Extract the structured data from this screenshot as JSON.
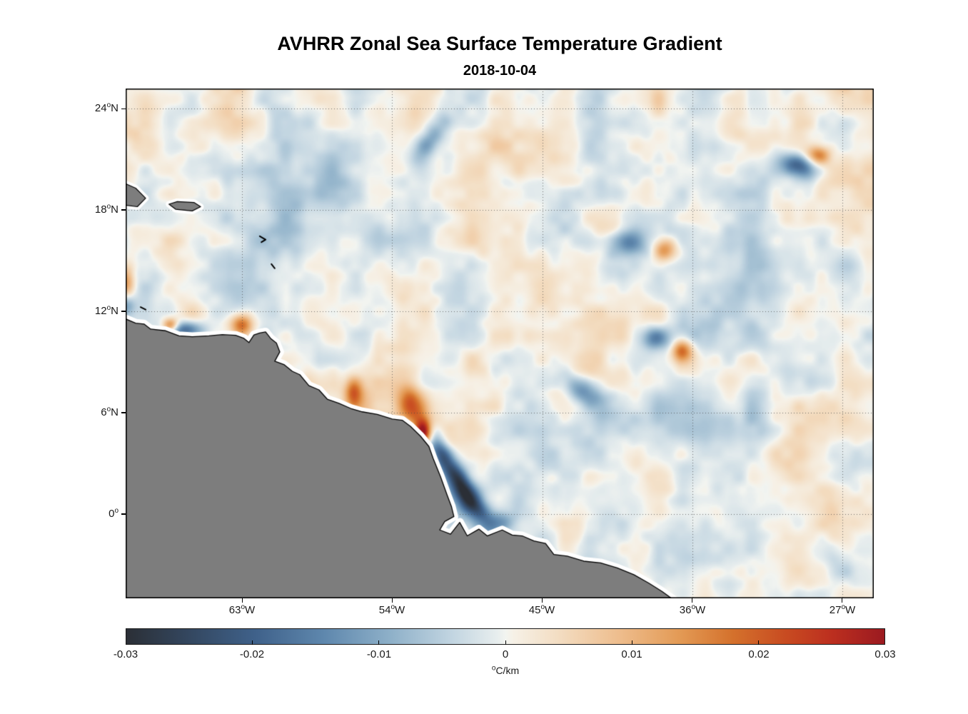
{
  "header": {
    "title": "AVHRR Zonal Sea Surface Temperature Gradient",
    "date": "2018-10-04"
  },
  "labels": {
    "degree": "o"
  },
  "axes": {
    "x_ticks": [
      {
        "v": "63",
        "s": "W",
        "lon": -63
      },
      {
        "v": "54",
        "s": "W",
        "lon": -54
      },
      {
        "v": "45",
        "s": "W",
        "lon": -45
      },
      {
        "v": "36",
        "s": "W",
        "lon": -36
      },
      {
        "v": "27",
        "s": "W",
        "lon": -27
      }
    ],
    "y_ticks": [
      {
        "v": "24",
        "s": "N",
        "lat": 24
      },
      {
        "v": "18",
        "s": "N",
        "lat": 18
      },
      {
        "v": "12",
        "s": "N",
        "lat": 12
      },
      {
        "v": "6",
        "s": "N",
        "lat": 6
      },
      {
        "v": "0",
        "s": "",
        "lat": 0
      }
    ]
  },
  "colorbar": {
    "ticks": [
      {
        "label": "-0.03",
        "value": -0.03
      },
      {
        "label": "-0.02",
        "value": -0.02
      },
      {
        "label": "-0.01",
        "value": -0.01
      },
      {
        "label": "0",
        "value": 0
      },
      {
        "label": "0.01",
        "value": 0.01
      },
      {
        "label": "0.02",
        "value": 0.02
      },
      {
        "label": "0.03",
        "value": 0.03
      }
    ],
    "unit": "C/km"
  },
  "chart_data": {
    "type": "heatmap",
    "title": "AVHRR Zonal Sea Surface Temperature Gradient",
    "date": "2018-10-04",
    "lon_range": [
      -70.0,
      -25.1
    ],
    "lat_range": [
      -5.0,
      25.2
    ],
    "grid_lons": [
      -63,
      -54,
      -45,
      -36,
      -27
    ],
    "grid_lats": [
      0,
      6,
      12,
      18,
      24
    ],
    "value_range": [
      -0.03,
      0.03
    ],
    "unit": "°C/km",
    "colormap_stops": [
      [
        0.0,
        "#2b2f36"
      ],
      [
        0.08,
        "#33465e"
      ],
      [
        0.17,
        "#3f618a"
      ],
      [
        0.26,
        "#5e87ad"
      ],
      [
        0.35,
        "#8fb1c9"
      ],
      [
        0.43,
        "#c2d5e1"
      ],
      [
        0.49,
        "#e8eeee"
      ],
      [
        0.5,
        "#f2f4f0"
      ],
      [
        0.51,
        "#f6f1e7"
      ],
      [
        0.57,
        "#f3ddc2"
      ],
      [
        0.65,
        "#eebd8d"
      ],
      [
        0.73,
        "#e39a55"
      ],
      [
        0.8,
        "#d4712c"
      ],
      [
        0.87,
        "#c84b21"
      ],
      [
        0.93,
        "#bc2f1f"
      ],
      [
        1.0,
        "#9b1a20"
      ]
    ],
    "land_color": "#7d7d7d",
    "coast_color": "#000000",
    "coast_halo_color": "#ffffff",
    "noise": {
      "seed": 20181004,
      "amplitude": 0.0115,
      "octaves": [
        {
          "wl": 6.0,
          "amp": 0.55,
          "off": 11.3
        },
        {
          "wl": 2.8,
          "amp": 0.85,
          "off": 4.7
        },
        {
          "wl": 1.4,
          "amp": 0.6,
          "off": 9.1
        },
        {
          "wl": 0.7,
          "amp": 0.32,
          "off": 2.3
        }
      ]
    },
    "features": [
      {
        "lon": -52.15,
        "lat": 4.85,
        "amp": 0.032,
        "sx": 0.35,
        "sy": 0.5,
        "rot": 0
      },
      {
        "lon": -52.8,
        "lat": 6.4,
        "amp": 0.02,
        "sx": 0.55,
        "sy": 0.8,
        "rot": 20
      },
      {
        "lon": -51.1,
        "lat": 3.6,
        "amp": -0.018,
        "sx": 0.4,
        "sy": 0.9,
        "rot": 25
      },
      {
        "lon": -50.0,
        "lat": 2.0,
        "amp": -0.022,
        "sx": 0.45,
        "sy": 1.1,
        "rot": 30
      },
      {
        "lon": -49.2,
        "lat": 0.6,
        "amp": -0.02,
        "sx": 0.5,
        "sy": 0.9,
        "rot": 40
      },
      {
        "lon": -47.8,
        "lat": -0.6,
        "amp": -0.014,
        "sx": 0.8,
        "sy": 0.5,
        "rot": 20
      },
      {
        "lon": -66.5,
        "lat": 10.9,
        "amp": -0.02,
        "sx": 0.8,
        "sy": 0.35,
        "rot": 0
      },
      {
        "lon": -67.3,
        "lat": 11.15,
        "amp": 0.022,
        "sx": 0.35,
        "sy": 0.3,
        "rot": 0
      },
      {
        "lon": -63.0,
        "lat": 11.2,
        "amp": 0.02,
        "sx": 0.5,
        "sy": 0.45,
        "rot": 0
      },
      {
        "lon": -70.0,
        "lat": 13.6,
        "amp": 0.018,
        "sx": 0.4,
        "sy": 0.9,
        "rot": 0
      },
      {
        "lon": -70.0,
        "lat": 12.4,
        "amp": -0.016,
        "sx": 0.4,
        "sy": 0.5,
        "rot": 0
      },
      {
        "lon": -56.3,
        "lat": 7.2,
        "amp": 0.018,
        "sx": 0.4,
        "sy": 0.6,
        "rot": 0
      },
      {
        "lon": -51.7,
        "lat": 22.3,
        "amp": -0.013,
        "sx": 0.5,
        "sy": 1.3,
        "rot": -30
      },
      {
        "lon": -29.6,
        "lat": 20.6,
        "amp": -0.02,
        "sx": 0.8,
        "sy": 0.45,
        "rot": -20
      },
      {
        "lon": -28.4,
        "lat": 21.3,
        "amp": 0.016,
        "sx": 0.5,
        "sy": 0.4,
        "rot": 0
      },
      {
        "lon": -39.7,
        "lat": 16.1,
        "amp": -0.016,
        "sx": 0.7,
        "sy": 0.5,
        "rot": 0
      },
      {
        "lon": -37.6,
        "lat": 15.6,
        "amp": 0.016,
        "sx": 0.5,
        "sy": 0.45,
        "rot": 0
      },
      {
        "lon": -42.6,
        "lat": 7.3,
        "amp": -0.014,
        "sx": 1.2,
        "sy": 0.5,
        "rot": -35
      },
      {
        "lon": -38.2,
        "lat": 10.4,
        "amp": -0.016,
        "sx": 0.6,
        "sy": 0.5,
        "rot": 0
      },
      {
        "lon": -36.6,
        "lat": 9.7,
        "amp": 0.018,
        "sx": 0.45,
        "sy": 0.45,
        "rot": 0
      }
    ],
    "land_polygon": [
      [
        -70.0,
        11.55
      ],
      [
        -69.4,
        11.3
      ],
      [
        -68.9,
        11.25
      ],
      [
        -68.5,
        10.95
      ],
      [
        -67.6,
        10.85
      ],
      [
        -66.8,
        10.55
      ],
      [
        -66.0,
        10.5
      ],
      [
        -65.0,
        10.55
      ],
      [
        -64.2,
        10.62
      ],
      [
        -63.4,
        10.58
      ],
      [
        -62.9,
        10.4
      ],
      [
        -62.6,
        10.15
      ],
      [
        -62.3,
        10.6
      ],
      [
        -61.95,
        10.72
      ],
      [
        -61.6,
        10.78
      ],
      [
        -61.3,
        10.4
      ],
      [
        -60.95,
        10.12
      ],
      [
        -60.75,
        9.6
      ],
      [
        -61.05,
        9.05
      ],
      [
        -60.5,
        8.85
      ],
      [
        -60.0,
        8.45
      ],
      [
        -59.55,
        8.25
      ],
      [
        -59.0,
        7.6
      ],
      [
        -58.4,
        7.35
      ],
      [
        -57.9,
        6.8
      ],
      [
        -57.2,
        6.55
      ],
      [
        -56.5,
        6.25
      ],
      [
        -55.8,
        6.05
      ],
      [
        -54.9,
        5.9
      ],
      [
        -54.0,
        5.62
      ],
      [
        -53.4,
        5.55
      ],
      [
        -52.9,
        5.18
      ],
      [
        -52.3,
        4.6
      ],
      [
        -51.8,
        4.0
      ],
      [
        -51.55,
        3.3
      ],
      [
        -51.1,
        2.2
      ],
      [
        -50.7,
        1.1
      ],
      [
        -50.45,
        0.45
      ],
      [
        -50.3,
        -0.15
      ],
      [
        -50.85,
        -0.45
      ],
      [
        -51.15,
        -0.95
      ],
      [
        -50.5,
        -1.2
      ],
      [
        -49.95,
        -0.5
      ],
      [
        -49.5,
        -1.3
      ],
      [
        -48.8,
        -0.9
      ],
      [
        -48.3,
        -1.3
      ],
      [
        -47.4,
        -0.95
      ],
      [
        -46.8,
        -1.25
      ],
      [
        -46.2,
        -1.3
      ],
      [
        -45.5,
        -1.6
      ],
      [
        -44.8,
        -1.75
      ],
      [
        -44.3,
        -2.4
      ],
      [
        -43.5,
        -2.5
      ],
      [
        -42.5,
        -2.8
      ],
      [
        -41.5,
        -2.9
      ],
      [
        -40.5,
        -3.2
      ],
      [
        -39.5,
        -3.6
      ],
      [
        -38.6,
        -4.1
      ],
      [
        -37.8,
        -4.6
      ],
      [
        -37.1,
        -5.1
      ],
      [
        -70.0,
        -5.1
      ]
    ],
    "islands": [
      [
        [
          -70.1,
          19.6
        ],
        [
          -69.4,
          19.3
        ],
        [
          -68.8,
          18.7
        ],
        [
          -69.3,
          18.2
        ],
        [
          -70.1,
          18.3
        ]
      ],
      [
        [
          -67.4,
          18.35
        ],
        [
          -66.9,
          18.5
        ],
        [
          -65.9,
          18.45
        ],
        [
          -65.5,
          18.2
        ],
        [
          -66.0,
          17.95
        ],
        [
          -67.0,
          18.05
        ]
      ]
    ],
    "island_marks": [
      [
        [
          -61.95,
          16.45
        ],
        [
          -61.6,
          16.25
        ],
        [
          -61.85,
          16.1
        ]
      ],
      [
        [
          -61.25,
          14.8
        ],
        [
          -61.05,
          14.55
        ]
      ],
      [
        [
          -69.1,
          12.25
        ],
        [
          -68.8,
          12.1
        ]
      ]
    ]
  }
}
